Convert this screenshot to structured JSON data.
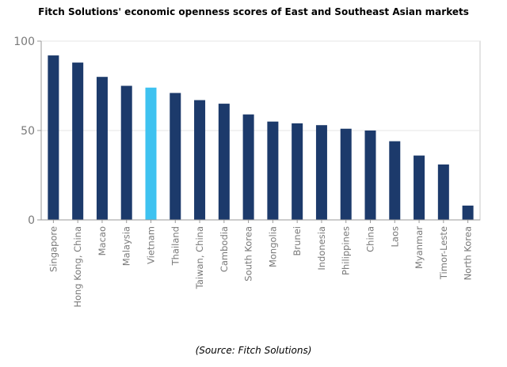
{
  "chart_data": {
    "type": "bar",
    "title": "Fitch Solutions' economic openness scores of East and Southeast Asian markets",
    "source": "(Source: Fitch Solutions)",
    "xlabel": "",
    "ylabel": "",
    "ylim": [
      0,
      100
    ],
    "yticks": [
      0,
      50,
      100
    ],
    "grid": true,
    "categories": [
      "Singapore",
      "Hong Kong, China",
      "Macao",
      "Malaysia",
      "Vietnam",
      "Thailand",
      "Taiwan, China",
      "Cambodia",
      "South Korea",
      "Mongolia",
      "Brunei",
      "Indonesia",
      "Philippines",
      "China",
      "Laos",
      "Myanmar",
      "Timor-Leste",
      "North Korea"
    ],
    "values": [
      92,
      88,
      80,
      75,
      74,
      71,
      67,
      65,
      59,
      55,
      54,
      53,
      51,
      50,
      44,
      36,
      31,
      8
    ],
    "highlight": "Vietnam",
    "colors": {
      "bar": "#1c3a6b",
      "highlight": "#3ec2f0",
      "grid": "#e4e4e4",
      "axis": "#9a9a9a",
      "tick_label": "#7a7a7a",
      "frame": "#c8c8c8"
    }
  }
}
